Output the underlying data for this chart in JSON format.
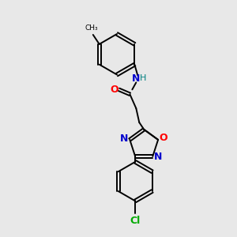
{
  "background_color": "#e8e8e8",
  "bond_color": "#000000",
  "N_color": "#0000cd",
  "O_color": "#ff0000",
  "Cl_color": "#00aa00",
  "H_color": "#008080",
  "figsize": [
    3.0,
    3.0
  ],
  "dpi": 100,
  "xlim": [
    0,
    300
  ],
  "ylim": [
    0,
    300
  ]
}
